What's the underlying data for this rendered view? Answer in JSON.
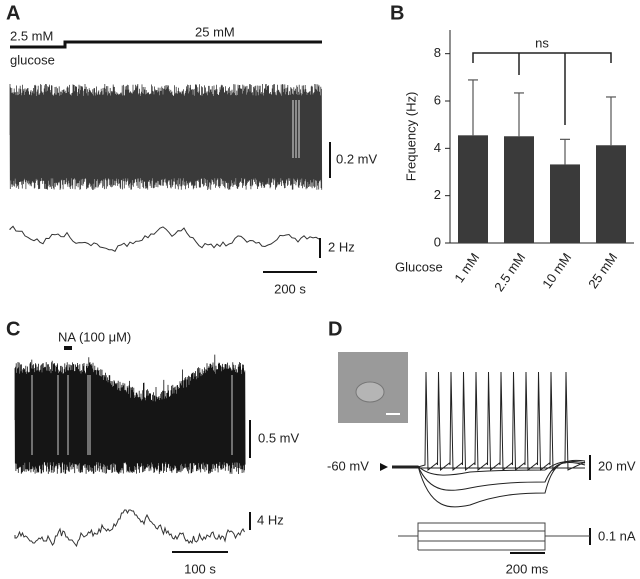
{
  "panels": {
    "A": {
      "label": "A",
      "conc_low": "2.5 mM",
      "conc_high": "25 mM",
      "stimulus": "glucose",
      "scale_v": "0.2 mV",
      "scale_f": "2 Hz",
      "scale_t": "200 s"
    },
    "B": {
      "label": "B"
    },
    "C": {
      "label": "C",
      "drug": "NA (100 μM)",
      "scale_v": "0.5 mV",
      "scale_f": "4 Hz",
      "scale_t": "100 s"
    },
    "D": {
      "label": "D",
      "resting": "-60 mV",
      "scale_v": "20 mV",
      "scale_i": "0.1 nA",
      "scale_t": "200 ms"
    }
  },
  "chart_data": {
    "type": "bar",
    "ylabel": "Frequency (Hz)",
    "xlabel": "Glucose",
    "categories": [
      "1 mM",
      "2.5 mM",
      "10 mM",
      "25 mM"
    ],
    "values": [
      4.55,
      4.51,
      3.32,
      4.13
    ],
    "errors": [
      2.34,
      1.83,
      1.06,
      2.04
    ],
    "color": "#3a3a3a",
    "ylim": [
      0,
      9
    ],
    "yticks": [
      0,
      2,
      4,
      6,
      8
    ],
    "annotation": "ns"
  }
}
